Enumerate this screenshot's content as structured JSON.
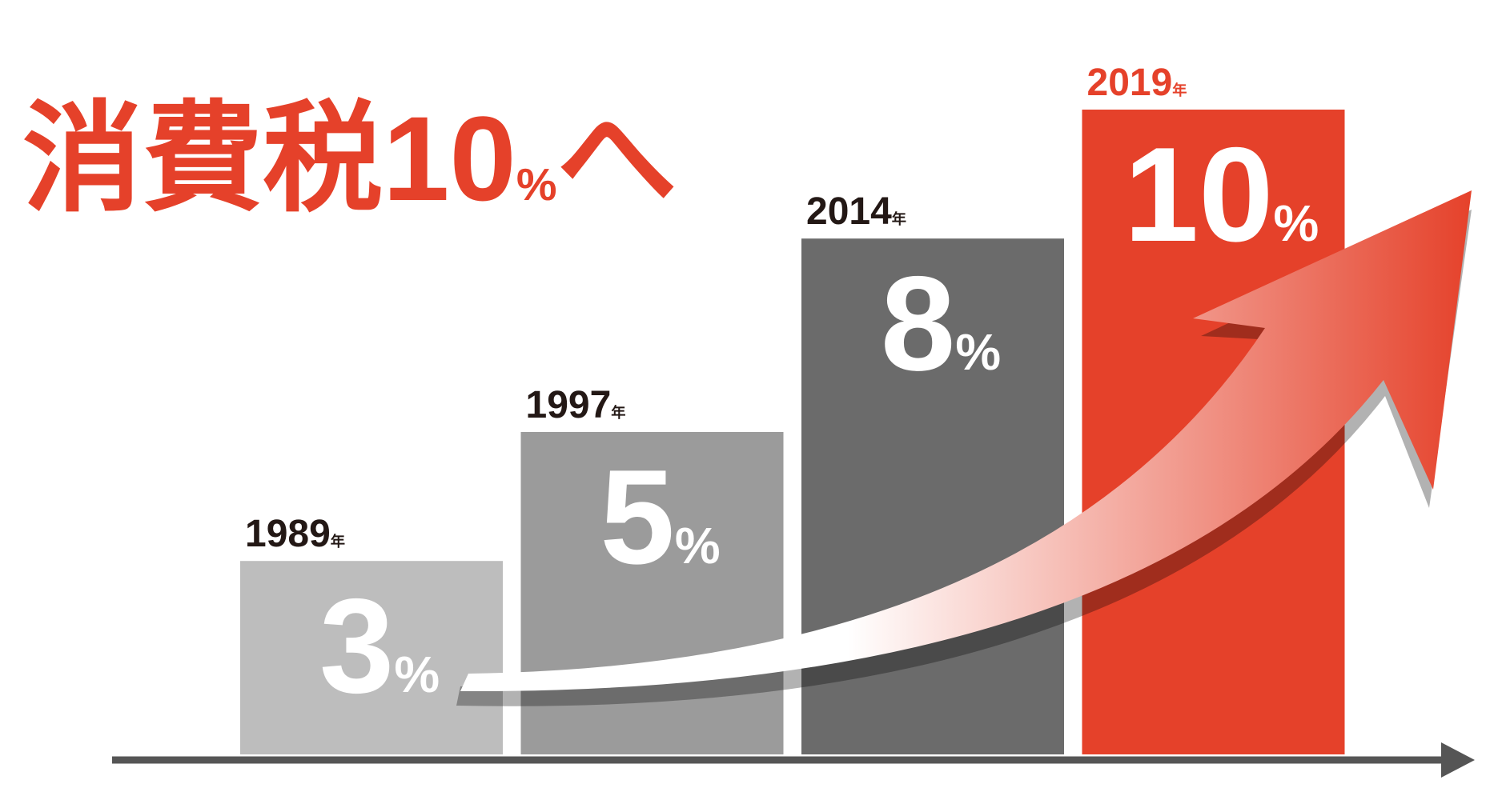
{
  "chart_data": {
    "type": "bar",
    "title": "消費税10%へ",
    "categories": [
      "1989年",
      "1997年",
      "2014年",
      "2019年"
    ],
    "values": [
      3,
      5,
      8,
      10
    ],
    "value_labels": [
      "3%",
      "5%",
      "8%",
      "10%"
    ],
    "colors": [
      "#bdbdbd",
      "#9b9b9b",
      "#6b6b6b",
      "#e5412a"
    ]
  }
}
